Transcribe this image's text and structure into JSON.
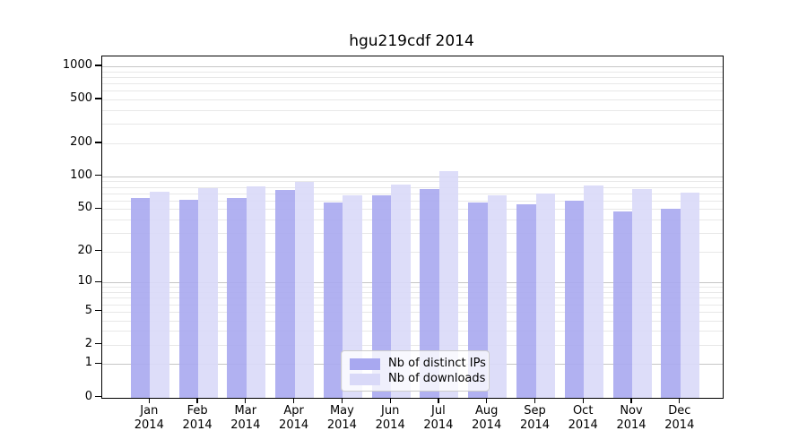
{
  "title": "hgu219cdf 2014",
  "chart_data": {
    "type": "bar",
    "title": "hgu219cdf 2014",
    "scale": "log1p",
    "categories": [
      "Jan",
      "Feb",
      "Mar",
      "Apr",
      "May",
      "Jun",
      "Jul",
      "Aug",
      "Sep",
      "Oct",
      "Nov",
      "Dec"
    ],
    "year": "2014",
    "series": [
      {
        "name": "Nb of distinct IPs",
        "color": "#a8a8f0",
        "values": [
          64,
          61,
          64,
          76,
          58,
          67,
          77,
          58,
          56,
          60,
          48,
          51
        ]
      },
      {
        "name": "Nb of downloads",
        "color": "#d9d9f8",
        "values": [
          73,
          78,
          82,
          89,
          67,
          85,
          113,
          68,
          70,
          83,
          77,
          71
        ]
      }
    ],
    "xlabel": "",
    "ylabel": "",
    "y_ticks": [
      1000,
      500,
      200,
      100,
      50,
      20,
      10,
      5,
      2,
      1,
      0
    ],
    "ylim": [
      0,
      1225
    ],
    "grid": "horizontal",
    "legend_position": "inside-bottom-center"
  },
  "colors": {
    "bar_distinct_ips": "#a8a8f0",
    "bar_downloads": "#d9d9f8",
    "grid_major": "#c6c6c6",
    "grid_minor": "#e8e8e8",
    "frame": "#000000",
    "background": "#ffffff"
  }
}
